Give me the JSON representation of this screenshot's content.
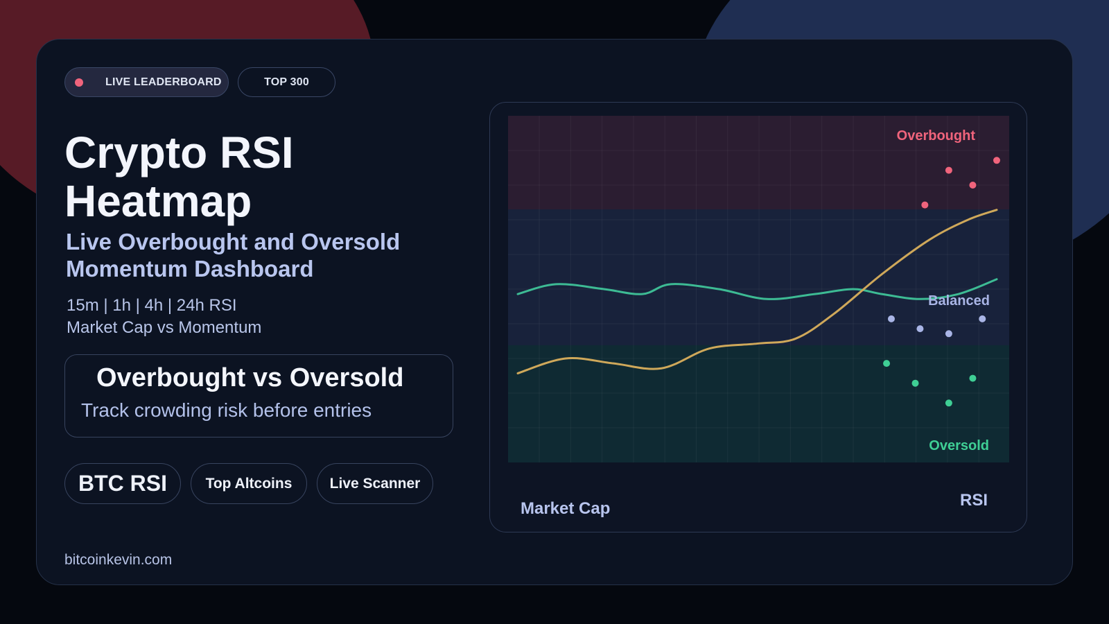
{
  "badges": {
    "live_label": "LIVE LEADERBOARD",
    "top_label": "TOP 300",
    "live_dot_color": "#f0647c"
  },
  "hero": {
    "title_line1": "Crypto RSI",
    "title_line2": "Heatmap",
    "subtitle_line1": "Live Overbought and Oversold",
    "subtitle_line2": "Momentum Dashboard",
    "meta_line1": "15m | 1h | 4h | 24h RSI",
    "meta_line2": "Market Cap vs Momentum"
  },
  "callout": {
    "title": "Overbought vs Oversold",
    "subtitle": "Track crowding risk before entries"
  },
  "chips": {
    "btc": "BTC RSI",
    "altcoins": "Top Altcoins",
    "scanner": "Live Scanner"
  },
  "footer": {
    "site": "bitcoinkevin.com"
  },
  "colors": {
    "overbought": "#f0647c",
    "balanced": "#a9b5e6",
    "oversold": "#3fcf95",
    "green_line": "#3dbb94",
    "gold_line": "#cfa85a"
  },
  "chart_data": {
    "type": "scatter",
    "xlabel": "Market Cap",
    "ylabel": "RSI",
    "grid": true,
    "zones": [
      {
        "name": "Overbought",
        "label": "Overbought"
      },
      {
        "name": "Balanced",
        "label": "Balanced"
      },
      {
        "name": "Oversold",
        "label": "Oversold"
      }
    ],
    "series": [
      {
        "values": [
          [
            0,
            49
          ],
          [
            0.08,
            51
          ],
          [
            0.18,
            50
          ],
          [
            0.26,
            49
          ],
          [
            0.32,
            51
          ],
          [
            0.42,
            50
          ],
          [
            0.52,
            48
          ],
          [
            0.62,
            49
          ],
          [
            0.7,
            50
          ],
          [
            0.76,
            49
          ],
          [
            0.84,
            48
          ],
          [
            0.92,
            49
          ],
          [
            1.0,
            52
          ]
        ]
      },
      {
        "values": [
          [
            0,
            33
          ],
          [
            0.1,
            36
          ],
          [
            0.2,
            35
          ],
          [
            0.3,
            34
          ],
          [
            0.4,
            38
          ],
          [
            0.5,
            39
          ],
          [
            0.58,
            40
          ],
          [
            0.66,
            45
          ],
          [
            0.76,
            53
          ],
          [
            0.86,
            60
          ],
          [
            0.94,
            64
          ],
          [
            1.0,
            66
          ]
        ]
      }
    ],
    "points": [
      {
        "zone": "Overbought",
        "values": [
          [
            0.9,
            74
          ],
          [
            0.95,
            71
          ],
          [
            0.85,
            67
          ],
          [
            1.0,
            76
          ]
        ]
      },
      {
        "zone": "Balanced",
        "values": [
          [
            0.78,
            44
          ],
          [
            0.84,
            42
          ],
          [
            0.9,
            41
          ],
          [
            0.97,
            44
          ]
        ]
      },
      {
        "zone": "Oversold",
        "values": [
          [
            0.77,
            35
          ],
          [
            0.83,
            31
          ],
          [
            0.9,
            27
          ],
          [
            0.95,
            32
          ]
        ]
      }
    ]
  }
}
